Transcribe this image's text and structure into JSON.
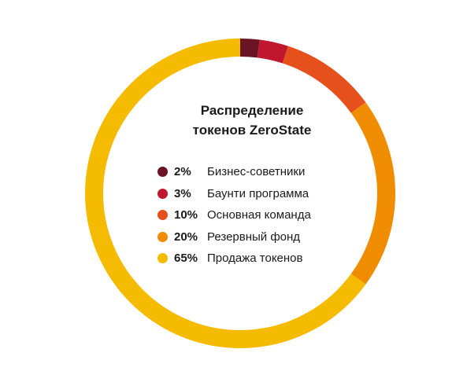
{
  "chart_data": {
    "type": "pie",
    "title_lines": [
      "Распределение",
      "токенов ZeroState"
    ],
    "series": [
      {
        "label": "Бизнес-советники",
        "percent_label": "2%",
        "value": 2,
        "color": "#6b1426"
      },
      {
        "label": "Баунти программа",
        "percent_label": "3%",
        "value": 3,
        "color": "#c0172e"
      },
      {
        "label": "Основная команда",
        "percent_label": "10%",
        "value": 10,
        "color": "#e5501d"
      },
      {
        "label": "Резервный фонд",
        "percent_label": "20%",
        "value": 20,
        "color": "#ef8c00"
      },
      {
        "label": "Продажа токенов",
        "percent_label": "65%",
        "value": 65,
        "color": "#f4bb00"
      }
    ]
  }
}
